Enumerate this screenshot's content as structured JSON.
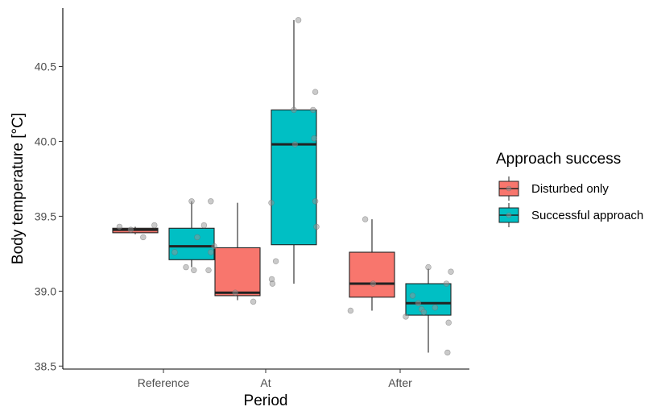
{
  "chart_data": {
    "type": "box",
    "xlabel": "Period",
    "ylabel": "Body temperature [°C]",
    "categories": [
      "Reference",
      "At",
      "After"
    ],
    "ylim": [
      38.48,
      40.89
    ],
    "yticks": [
      38.5,
      39.0,
      39.5,
      40.0,
      40.5
    ],
    "ytick_labels": [
      "38.5",
      "39.0",
      "39.5",
      "40.0",
      "40.5"
    ],
    "grid": false,
    "legend": {
      "title": "Approach success",
      "position": "right",
      "entries": [
        "Disturbed only",
        "Successful approach"
      ]
    },
    "series": [
      {
        "name": "Disturbed only",
        "color": "#F8766D",
        "boxes": [
          {
            "category": "Reference",
            "min": 39.38,
            "q1": 39.39,
            "median": 39.41,
            "q3": 39.42,
            "max": 39.43
          },
          {
            "category": "At",
            "min": 38.94,
            "q1": 38.97,
            "median": 38.99,
            "q3": 39.29,
            "max": 39.59
          },
          {
            "category": "After",
            "min": 38.87,
            "q1": 38.96,
            "median": 39.05,
            "q3": 39.26,
            "max": 39.48
          }
        ],
        "points": [
          {
            "category": "Reference",
            "offset": -0.7,
            "value": 39.43
          },
          {
            "category": "Reference",
            "offset": -0.2,
            "value": 39.41
          },
          {
            "category": "Reference",
            "offset": 0.35,
            "value": 39.36
          },
          {
            "category": "Reference",
            "offset": 0.85,
            "value": 39.44
          },
          {
            "category": "At",
            "offset": -0.1,
            "value": 38.99
          },
          {
            "category": "At",
            "offset": 0.7,
            "value": 38.93
          },
          {
            "category": "After",
            "offset": -0.95,
            "value": 38.87
          },
          {
            "category": "After",
            "offset": -0.3,
            "value": 39.48
          },
          {
            "category": "After",
            "offset": 0.05,
            "value": 39.05
          }
        ]
      },
      {
        "name": "Successful approach",
        "color": "#00BFC4",
        "boxes": [
          {
            "category": "Reference",
            "min": 39.16,
            "q1": 39.21,
            "median": 39.3,
            "q3": 39.42,
            "max": 39.6
          },
          {
            "category": "At",
            "min": 39.05,
            "q1": 39.31,
            "median": 39.98,
            "q3": 40.21,
            "max": 40.81
          },
          {
            "category": "After",
            "min": 38.59,
            "q1": 38.84,
            "median": 38.92,
            "q3": 39.05,
            "max": 39.15
          }
        ],
        "points": [
          {
            "category": "Reference",
            "offset": -0.75,
            "value": 39.26
          },
          {
            "category": "Reference",
            "offset": -0.25,
            "value": 39.16
          },
          {
            "category": "Reference",
            "offset": 0.0,
            "value": 39.6
          },
          {
            "category": "Reference",
            "offset": 0.1,
            "value": 39.14
          },
          {
            "category": "Reference",
            "offset": 0.25,
            "value": 39.36
          },
          {
            "category": "Reference",
            "offset": 0.55,
            "value": 39.44
          },
          {
            "category": "Reference",
            "offset": 0.75,
            "value": 39.14
          },
          {
            "category": "Reference",
            "offset": 0.85,
            "value": 39.6
          },
          {
            "category": "Reference",
            "offset": 0.85,
            "value": 39.26
          },
          {
            "category": "Reference",
            "offset": 1.0,
            "value": 39.3
          },
          {
            "category": "At",
            "offset": -1.0,
            "value": 39.59
          },
          {
            "category": "At",
            "offset": -0.98,
            "value": 39.08
          },
          {
            "category": "At",
            "offset": -0.95,
            "value": 39.05
          },
          {
            "category": "At",
            "offset": -0.8,
            "value": 39.2
          },
          {
            "category": "At",
            "offset": 0.0,
            "value": 40.21
          },
          {
            "category": "At",
            "offset": 0.05,
            "value": 39.98
          },
          {
            "category": "At",
            "offset": 0.2,
            "value": 40.81
          },
          {
            "category": "At",
            "offset": 0.85,
            "value": 40.21
          },
          {
            "category": "At",
            "offset": 0.9,
            "value": 40.02
          },
          {
            "category": "At",
            "offset": 0.95,
            "value": 40.33
          },
          {
            "category": "At",
            "offset": 0.95,
            "value": 39.6
          },
          {
            "category": "At",
            "offset": 1.0,
            "value": 39.43
          },
          {
            "category": "After",
            "offset": -1.0,
            "value": 38.83
          },
          {
            "category": "After",
            "offset": -0.7,
            "value": 38.97
          },
          {
            "category": "After",
            "offset": -0.45,
            "value": 38.92
          },
          {
            "category": "After",
            "offset": -0.3,
            "value": 38.88
          },
          {
            "category": "After",
            "offset": -0.2,
            "value": 38.86
          },
          {
            "category": "After",
            "offset": 0.0,
            "value": 39.16
          },
          {
            "category": "After",
            "offset": 0.3,
            "value": 38.89
          },
          {
            "category": "After",
            "offset": 0.8,
            "value": 39.05
          },
          {
            "category": "After",
            "offset": 0.85,
            "value": 38.59
          },
          {
            "category": "After",
            "offset": 0.9,
            "value": 38.79
          },
          {
            "category": "After",
            "offset": 1.0,
            "value": 39.13
          }
        ]
      }
    ]
  }
}
